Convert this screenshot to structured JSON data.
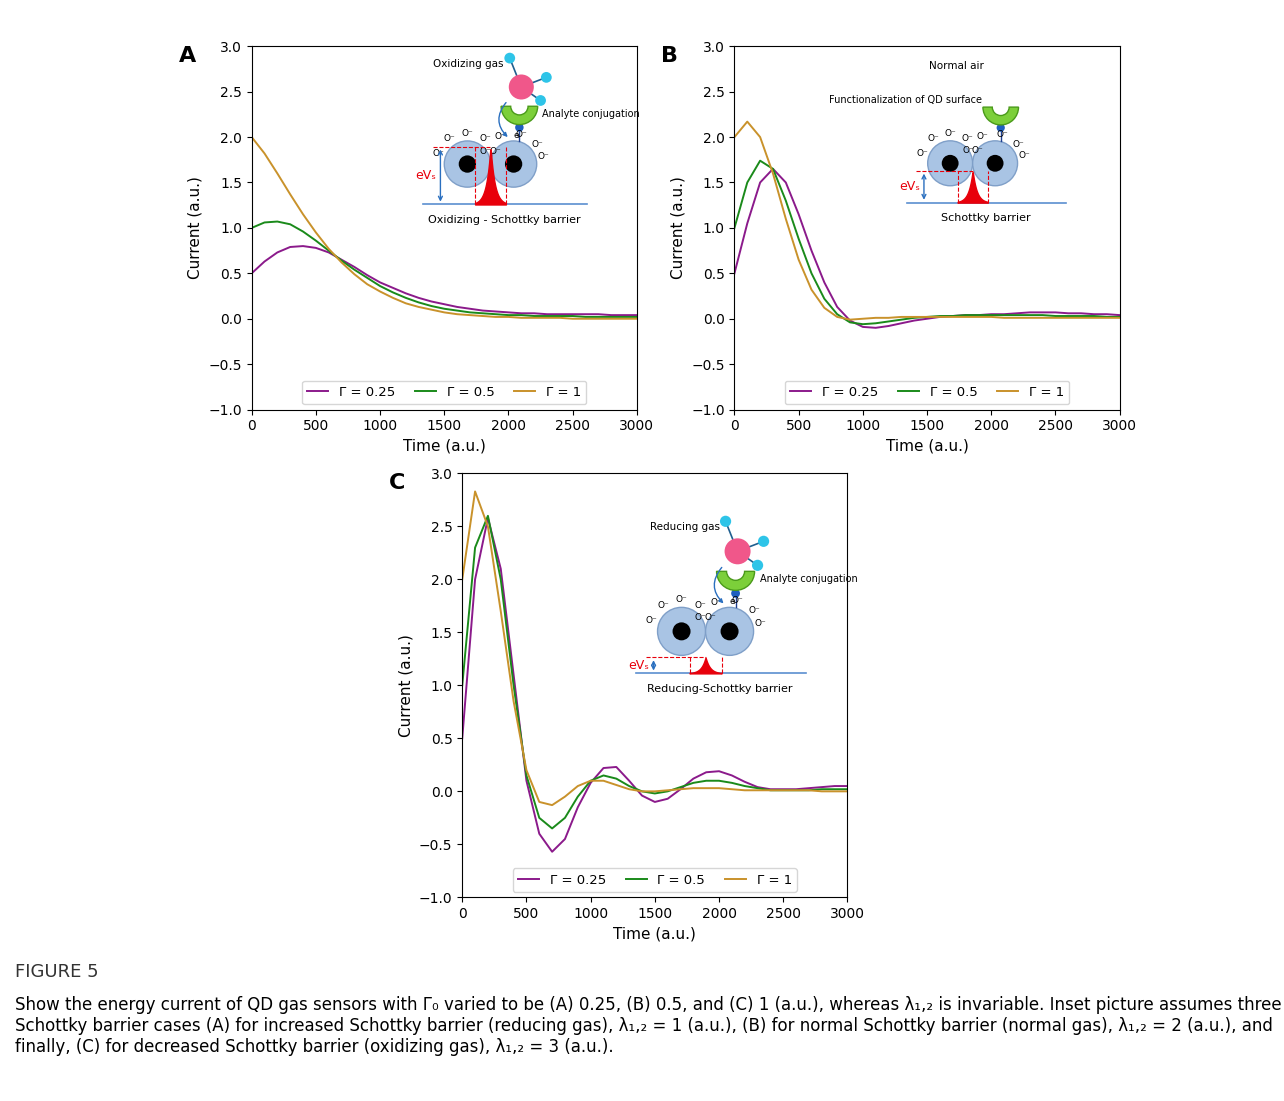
{
  "figure_label": "FIGURE 5",
  "caption": "Show the energy current of QD gas sensors with Γ₀ varied to be (A) 0.25, (B) 0.5, and (C) 1 (a.u.), whereas λ₁,₂ is invariable. Inset picture assumes three Schottky barrier cases (A) for increased Schottky barrier (reducing gas), λ₁,₂ = 1 (a.u.), (B) for normal Schottky barrier (normal gas), λ₁,₂ = 2 (a.u.), and finally, (C) for decreased Schottky barrier (oxidizing gas), λ₁,₂ = 3 (a.u.).",
  "chart_data": [
    {
      "type": "line",
      "title": "A",
      "x_label": "Time (a.u.)",
      "y_label": "Current (a.u.)",
      "xlim": [
        0,
        3000
      ],
      "ylim": [
        -1,
        3
      ],
      "xticks": [
        0,
        500,
        1000,
        1500,
        2000,
        2500,
        3000
      ],
      "yticks": [
        {
          "value": -1,
          "label": "−1.0"
        },
        {
          "value": -0.5,
          "label": "−0.5"
        },
        {
          "value": 0,
          "label": "0.0"
        },
        0.5,
        {
          "value": 1,
          "label": "1.0"
        },
        1.5,
        {
          "value": 2,
          "label": "2.0"
        },
        2.5,
        {
          "value": 3,
          "label": "3.0"
        }
      ],
      "legend": "lower center",
      "x": [
        0,
        100,
        200,
        300,
        400,
        500,
        600,
        700,
        800,
        900,
        1000,
        1100,
        1200,
        1300,
        1400,
        1500,
        1600,
        1700,
        1800,
        1900,
        2000,
        2100,
        2200,
        2300,
        2400,
        2500,
        2600,
        2700,
        2800,
        2900,
        3000
      ],
      "series": [
        {
          "name": "Γ = 0.25",
          "color": "#8b1a8b",
          "values": [
            0.5,
            0.63,
            0.73,
            0.79,
            0.8,
            0.78,
            0.73,
            0.65,
            0.57,
            0.48,
            0.4,
            0.34,
            0.28,
            0.23,
            0.19,
            0.16,
            0.13,
            0.11,
            0.09,
            0.08,
            0.07,
            0.06,
            0.06,
            0.05,
            0.05,
            0.05,
            0.05,
            0.05,
            0.04,
            0.04,
            0.04
          ]
        },
        {
          "name": "Γ = 0.5",
          "color": "#1a8a1a",
          "values": [
            1.0,
            1.06,
            1.07,
            1.04,
            0.96,
            0.86,
            0.75,
            0.64,
            0.54,
            0.45,
            0.36,
            0.29,
            0.23,
            0.18,
            0.14,
            0.11,
            0.09,
            0.07,
            0.06,
            0.05,
            0.04,
            0.04,
            0.03,
            0.03,
            0.03,
            0.03,
            0.02,
            0.02,
            0.02,
            0.02,
            0.02
          ]
        },
        {
          "name": "Γ = 1",
          "color": "#c9922b",
          "values": [
            2.0,
            1.82,
            1.6,
            1.37,
            1.15,
            0.95,
            0.77,
            0.62,
            0.49,
            0.38,
            0.3,
            0.23,
            0.17,
            0.13,
            0.1,
            0.07,
            0.05,
            0.04,
            0.03,
            0.02,
            0.02,
            0.01,
            0.01,
            0.01,
            0.01,
            0.0,
            0.0,
            0.0,
            0.0,
            0.0,
            0.0
          ]
        }
      ],
      "inset": {
        "gas_label": "Oxidizing gas",
        "conjugation_label": "Analyte conjugation",
        "electron_label": "e",
        "ion_label": "O⁻",
        "potential_label": "eVₛ",
        "barrier_label": "Oxidizing - Schottky barrier"
      }
    },
    {
      "type": "line",
      "title": "B",
      "x_label": "Time (a.u.)",
      "y_label": "Current (a.u.)",
      "xlim": [
        0,
        3000
      ],
      "ylim": [
        -1,
        3
      ],
      "xticks": [
        0,
        500,
        1000,
        1500,
        2000,
        2500,
        3000
      ],
      "yticks": [
        {
          "value": -1,
          "label": "−1.0"
        },
        {
          "value": -0.5,
          "label": "−0.5"
        },
        {
          "value": 0,
          "label": "0.0"
        },
        0.5,
        {
          "value": 1,
          "label": "1.0"
        },
        1.5,
        {
          "value": 2,
          "label": "2.0"
        },
        2.5,
        {
          "value": 3,
          "label": "3.0"
        }
      ],
      "legend": "lower center",
      "x": [
        0,
        100,
        200,
        300,
        400,
        500,
        600,
        700,
        800,
        900,
        1000,
        1100,
        1200,
        1300,
        1400,
        1500,
        1600,
        1700,
        1800,
        1900,
        2000,
        2100,
        2200,
        2300,
        2400,
        2500,
        2600,
        2700,
        2800,
        2900,
        3000
      ],
      "series": [
        {
          "name": "Γ = 0.25",
          "color": "#8b1a8b",
          "values": [
            0.5,
            1.05,
            1.5,
            1.65,
            1.5,
            1.15,
            0.75,
            0.4,
            0.13,
            -0.02,
            -0.09,
            -0.1,
            -0.08,
            -0.05,
            -0.02,
            0.0,
            0.02,
            0.03,
            0.04,
            0.04,
            0.05,
            0.05,
            0.06,
            0.07,
            0.07,
            0.07,
            0.06,
            0.06,
            0.05,
            0.05,
            0.04
          ]
        },
        {
          "name": "Γ = 0.5",
          "color": "#1a8a1a",
          "values": [
            1.0,
            1.5,
            1.74,
            1.65,
            1.3,
            0.88,
            0.5,
            0.22,
            0.05,
            -0.04,
            -0.06,
            -0.05,
            -0.03,
            -0.01,
            0.01,
            0.02,
            0.03,
            0.03,
            0.04,
            0.04,
            0.04,
            0.04,
            0.04,
            0.04,
            0.04,
            0.03,
            0.03,
            0.03,
            0.03,
            0.02,
            0.02
          ]
        },
        {
          "name": "Γ = 1",
          "color": "#c9922b",
          "values": [
            2.0,
            2.17,
            2.0,
            1.6,
            1.1,
            0.65,
            0.32,
            0.12,
            0.02,
            -0.01,
            0.0,
            0.01,
            0.01,
            0.02,
            0.02,
            0.02,
            0.02,
            0.02,
            0.02,
            0.02,
            0.02,
            0.01,
            0.01,
            0.01,
            0.01,
            0.01,
            0.01,
            0.01,
            0.01,
            0.01,
            0.01
          ]
        }
      ],
      "inset": {
        "gas_label": "Normal air",
        "conjugation_label": "Functionalization of QD surface",
        "ion_label": "O⁻",
        "potential_label": "eVₛ",
        "barrier_label": "Schottky barrier"
      }
    },
    {
      "type": "line",
      "title": "C",
      "x_label": "Time (a.u.)",
      "y_label": "Current (a.u.)",
      "xlim": [
        0,
        3000
      ],
      "ylim": [
        -1,
        3
      ],
      "xticks": [
        0,
        500,
        1000,
        1500,
        2000,
        2500,
        3000
      ],
      "yticks": [
        {
          "value": -1,
          "label": "−1.0"
        },
        {
          "value": -0.5,
          "label": "−0.5"
        },
        {
          "value": 0,
          "label": "0.0"
        },
        0.5,
        {
          "value": 1,
          "label": "1.0"
        },
        1.5,
        {
          "value": 2,
          "label": "2.0"
        },
        2.5,
        {
          "value": 3,
          "label": "3.0"
        }
      ],
      "legend": "lower center",
      "x": [
        0,
        100,
        200,
        300,
        400,
        500,
        600,
        700,
        800,
        900,
        1000,
        1100,
        1200,
        1300,
        1400,
        1500,
        1600,
        1700,
        1800,
        1900,
        2000,
        2100,
        2200,
        2300,
        2400,
        2500,
        2600,
        2700,
        2800,
        2900,
        3000
      ],
      "series": [
        {
          "name": "Γ = 0.25",
          "color": "#8b1a8b",
          "values": [
            0.5,
            2.0,
            2.58,
            2.1,
            1.1,
            0.1,
            -0.4,
            -0.57,
            -0.45,
            -0.15,
            0.08,
            0.22,
            0.23,
            0.1,
            -0.04,
            -0.1,
            -0.07,
            0.02,
            0.12,
            0.18,
            0.19,
            0.15,
            0.09,
            0.04,
            0.02,
            0.02,
            0.02,
            0.03,
            0.04,
            0.05,
            0.05
          ]
        },
        {
          "name": "Γ = 0.5",
          "color": "#1a8a1a",
          "values": [
            1.0,
            2.3,
            2.6,
            2.0,
            1.0,
            0.15,
            -0.25,
            -0.35,
            -0.25,
            -0.05,
            0.1,
            0.15,
            0.12,
            0.05,
            0.0,
            -0.02,
            0.0,
            0.04,
            0.08,
            0.1,
            0.1,
            0.08,
            0.05,
            0.03,
            0.01,
            0.01,
            0.01,
            0.01,
            0.02,
            0.02,
            0.02
          ]
        },
        {
          "name": "Γ = 1",
          "color": "#c9922b",
          "values": [
            2.0,
            2.83,
            2.5,
            1.7,
            0.85,
            0.2,
            -0.1,
            -0.13,
            -0.05,
            0.05,
            0.1,
            0.1,
            0.06,
            0.02,
            0.0,
            0.0,
            0.01,
            0.02,
            0.03,
            0.03,
            0.03,
            0.02,
            0.01,
            0.01,
            0.01,
            0.01,
            0.01,
            0.01,
            0.0,
            0.0,
            0.0
          ]
        }
      ],
      "inset": {
        "gas_label": "Reducing gas",
        "conjugation_label": "Analyte conjugation",
        "electron_label": "e",
        "ion_label": "O⁻",
        "potential_label": "eVₛ",
        "barrier_label": "Reducing-Schottky barrier"
      }
    }
  ]
}
